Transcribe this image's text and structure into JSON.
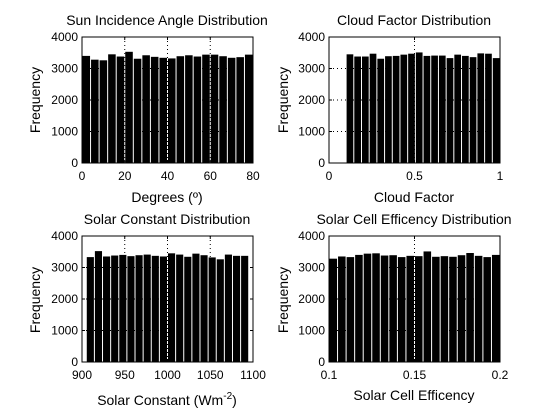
{
  "chart_data": [
    {
      "type": "bar",
      "title": "Sun Incidence Angle Distribution",
      "xlabel": "Degrees (º)",
      "ylabel": "Frequency",
      "xlim": [
        0,
        80
      ],
      "ylim": [
        0,
        4000
      ],
      "xticks": [
        "0",
        "20",
        "40",
        "60",
        "80"
      ],
      "yticks": [
        "0",
        "1000",
        "2000",
        "3000",
        "4000"
      ],
      "bins": {
        "start": 0,
        "end": 80
      },
      "values": [
        3400,
        3280,
        3260,
        3450,
        3380,
        3530,
        3310,
        3420,
        3370,
        3340,
        3320,
        3390,
        3420,
        3380,
        3440,
        3440,
        3390,
        3340,
        3360,
        3440
      ],
      "color": "#000000"
    },
    {
      "type": "bar",
      "title": "Cloud Factor Distribution",
      "xlabel": "Cloud Factor",
      "ylabel": "Frequency",
      "xlim": [
        0,
        1
      ],
      "ylim": [
        0,
        4000
      ],
      "xticks": [
        "0",
        "0.5",
        "1"
      ],
      "yticks": [
        "0",
        "1000",
        "2000",
        "3000",
        "4000"
      ],
      "bins": {
        "start": 0.1,
        "end": 1.0
      },
      "values": [
        3450,
        3380,
        3380,
        3470,
        3310,
        3390,
        3400,
        3440,
        3470,
        3510,
        3400,
        3410,
        3410,
        3330,
        3440,
        3400,
        3360,
        3480,
        3470,
        3330
      ],
      "color": "#000000"
    },
    {
      "type": "bar",
      "title": "Solar Constant Distribution",
      "xlabel": "Solar Constant (Wm",
      "xlabel_sup": "-2",
      "xlabel_end": ")",
      "ylabel": "Frequency",
      "xlim": [
        900,
        1100
      ],
      "ylim": [
        0,
        4000
      ],
      "xticks": [
        "900",
        "950",
        "1000",
        "1050",
        "1100"
      ],
      "yticks": [
        "0",
        "1000",
        "2000",
        "3000",
        "4000"
      ],
      "bins": {
        "start": 905,
        "end": 1095
      },
      "values": [
        3330,
        3520,
        3350,
        3380,
        3400,
        3360,
        3390,
        3410,
        3370,
        3350,
        3450,
        3410,
        3340,
        3440,
        3390,
        3320,
        3260,
        3410,
        3370,
        3370
      ],
      "color": "#000000"
    },
    {
      "type": "bar",
      "title": "Solar Cell Efficency Distribution",
      "xlabel": "Solar Cell Efficency",
      "ylabel": "Frequency",
      "xlim": [
        0.1,
        0.2
      ],
      "ylim": [
        0,
        4000
      ],
      "xticks": [
        "0.1",
        "0.15",
        "0.2"
      ],
      "yticks": [
        "0",
        "1000",
        "2000",
        "3000",
        "4000"
      ],
      "bins": {
        "start": 0.1,
        "end": 0.2
      },
      "values": [
        3280,
        3350,
        3330,
        3400,
        3440,
        3450,
        3380,
        3390,
        3330,
        3370,
        3360,
        3510,
        3340,
        3360,
        3340,
        3390,
        3460,
        3370,
        3330,
        3400
      ],
      "color": "#000000"
    }
  ]
}
